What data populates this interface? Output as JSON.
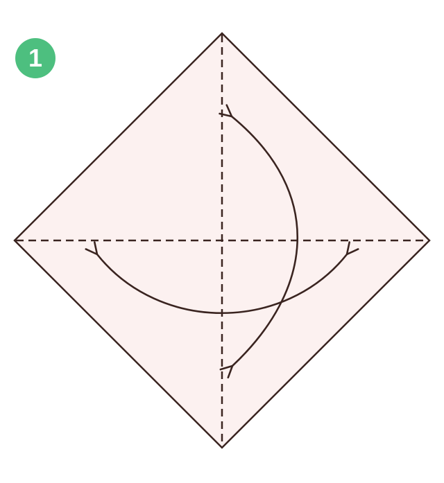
{
  "step": {
    "number": "1"
  },
  "colors": {
    "badge_background": "#4dbf7f",
    "badge_text": "#ffffff",
    "paper_fill": "#fcf1f0",
    "line": "#3a2420"
  },
  "diagram": {
    "shape": "square-diamond",
    "folds": [
      {
        "type": "valley-fold-crease",
        "orientation": "vertical",
        "style": "dashed"
      },
      {
        "type": "valley-fold-crease",
        "orientation": "horizontal",
        "style": "dashed"
      }
    ],
    "arrows": [
      {
        "type": "fold-and-unfold",
        "direction": "top-to-bottom"
      },
      {
        "type": "fold-and-unfold",
        "direction": "left-to-right"
      }
    ]
  }
}
